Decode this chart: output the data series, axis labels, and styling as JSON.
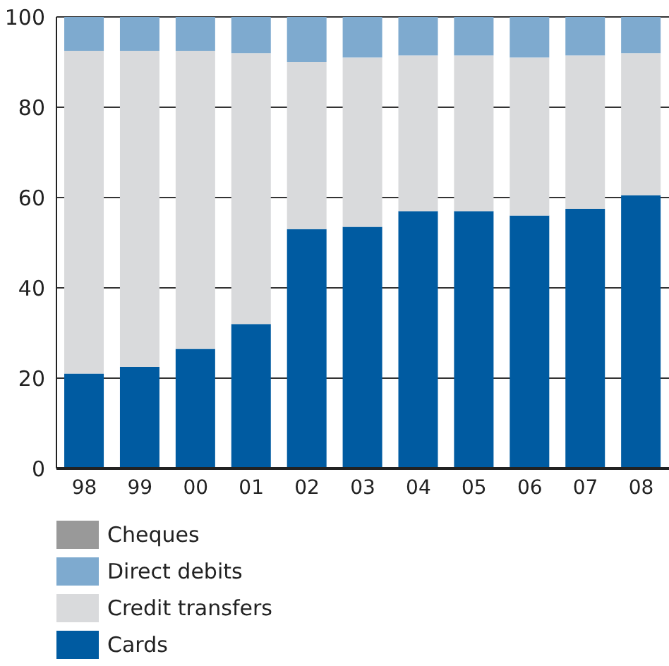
{
  "chart_data": {
    "type": "bar",
    "stacked": true,
    "categories": [
      "98",
      "99",
      "00",
      "01",
      "02",
      "03",
      "04",
      "05",
      "06",
      "07",
      "08"
    ],
    "series": [
      {
        "name": "Cards",
        "color": "#005ba1",
        "values": [
          21,
          22.5,
          26.5,
          32,
          53,
          53.5,
          57,
          57,
          56,
          57.5,
          60.5
        ]
      },
      {
        "name": "Credit transfers",
        "color": "#d9dadc",
        "values": [
          71.5,
          70,
          66,
          60,
          37,
          37.5,
          34.5,
          34.5,
          35,
          34,
          31.5
        ]
      },
      {
        "name": "Direct debits",
        "color": "#7eaacf",
        "values": [
          7.5,
          7.5,
          7.5,
          8,
          10,
          9,
          8.5,
          8.5,
          9,
          8.5,
          8
        ]
      },
      {
        "name": "Cheques",
        "color": "#999999",
        "values": [
          0,
          0,
          0,
          0,
          0,
          0,
          0,
          0,
          0,
          0,
          0
        ]
      }
    ],
    "ylim": [
      0,
      100
    ],
    "yticks": [
      0,
      20,
      40,
      60,
      80,
      100
    ],
    "grid": "y",
    "legend": "bottom"
  }
}
